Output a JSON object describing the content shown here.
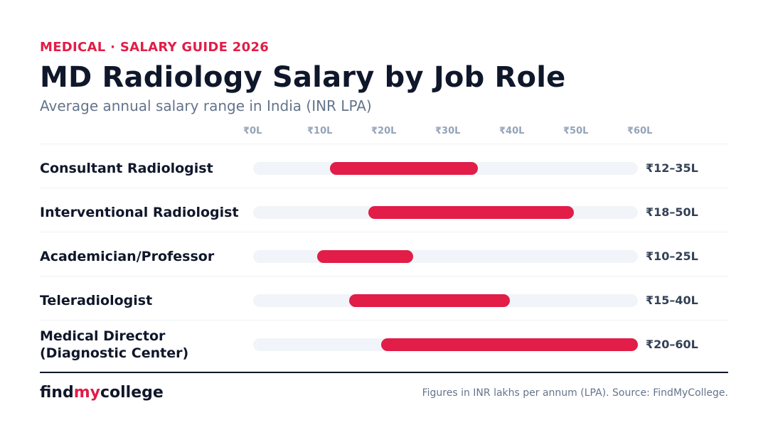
{
  "header": {
    "eyebrow": "MEDICAL · SALARY GUIDE 2026",
    "title": "MD Radiology Salary by Job Role",
    "subtitle": "Average annual salary range in India (INR LPA)"
  },
  "chart_data": {
    "type": "bar",
    "orientation": "horizontal-range",
    "title": "MD Radiology Salary by Job Role",
    "subtitle": "Average annual salary range in India (INR LPA)",
    "xlim": [
      0,
      60
    ],
    "x_ticks": [
      0,
      10,
      20,
      30,
      40,
      50,
      60
    ],
    "x_tick_labels": [
      "₹0L",
      "₹10L",
      "₹20L",
      "₹30L",
      "₹40L",
      "₹50L",
      "₹60L"
    ],
    "categories": [
      "Consultant Radiologist",
      "Interventional Radiologist",
      "Academician/Professor",
      "Teleradiologist",
      "Medical Director (Diagnostic Center)"
    ],
    "ranges": [
      [
        12,
        35
      ],
      [
        18,
        50
      ],
      [
        10,
        25
      ],
      [
        15,
        40
      ],
      [
        20,
        60
      ]
    ],
    "range_labels": [
      "₹12–35L",
      "₹18–50L",
      "₹10–25L",
      "₹15–40L",
      "₹20–60L"
    ],
    "grid": false,
    "colors": {
      "bar": "#e11d48",
      "track": "#f1f4f8"
    }
  },
  "footer": {
    "brand_prefix": "find",
    "brand_accent": "my",
    "brand_suffix": "college",
    "note": "Figures in INR lakhs per annum (LPA). Source: FindMyCollege."
  }
}
